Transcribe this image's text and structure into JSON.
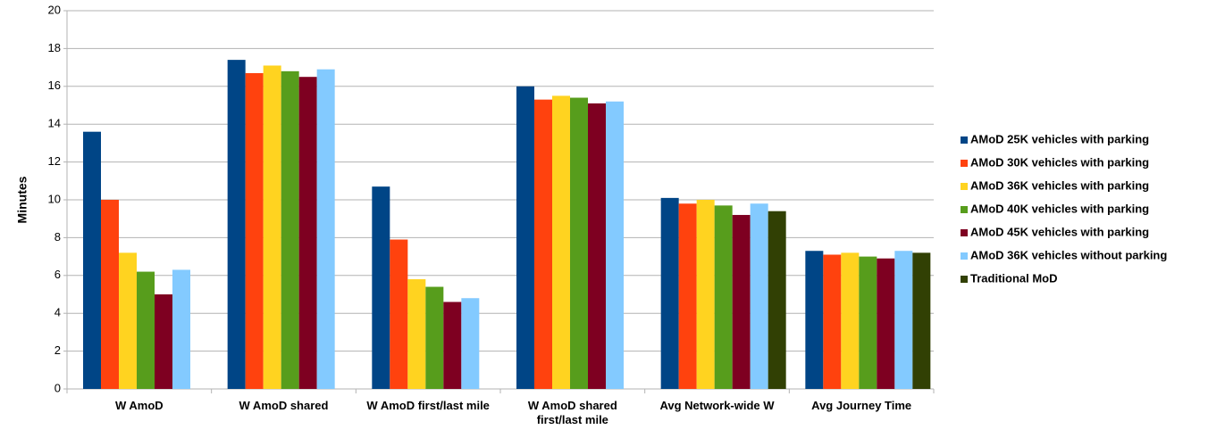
{
  "chart_data": {
    "type": "bar",
    "y_label": "Minutes",
    "categories": [
      "W AmoD",
      "W AmoD shared",
      "W AmoD first/last mile",
      "W AmoD shared first/last mile",
      "Avg Network-wide W",
      "Avg Journey Time"
    ],
    "series": [
      {
        "name": "AMoD 25K vehicles with parking",
        "color": "#004586",
        "values": [
          13.6,
          17.4,
          10.7,
          16.0,
          10.1,
          7.3
        ]
      },
      {
        "name": "AMoD 30K vehicles with parking",
        "color": "#ff420e",
        "values": [
          10.0,
          16.7,
          7.9,
          15.3,
          9.8,
          7.1
        ]
      },
      {
        "name": "AMoD 36K vehicles with parking",
        "color": "#ffd320",
        "values": [
          7.2,
          17.1,
          5.8,
          15.5,
          10.0,
          7.2
        ]
      },
      {
        "name": "AMoD 40K vehicles with parking",
        "color": "#579d1c",
        "values": [
          6.2,
          16.8,
          5.4,
          15.4,
          9.7,
          7.0
        ]
      },
      {
        "name": "AMoD 45K vehicles with parking",
        "color": "#7e0021",
        "values": [
          5.0,
          16.5,
          4.6,
          15.1,
          9.2,
          6.9
        ]
      },
      {
        "name": "AMoD 36K vehicles without parking",
        "color": "#83caff",
        "values": [
          6.3,
          16.9,
          4.8,
          15.2,
          9.8,
          7.3
        ]
      },
      {
        "name": "Traditional MoD",
        "color": "#314004",
        "values": [
          null,
          null,
          null,
          null,
          9.4,
          7.2
        ]
      }
    ],
    "ylim": [
      0,
      20
    ],
    "yticks": [
      0,
      2,
      4,
      6,
      8,
      10,
      12,
      14,
      16,
      18,
      20
    ],
    "grid": true,
    "legend": "right"
  }
}
